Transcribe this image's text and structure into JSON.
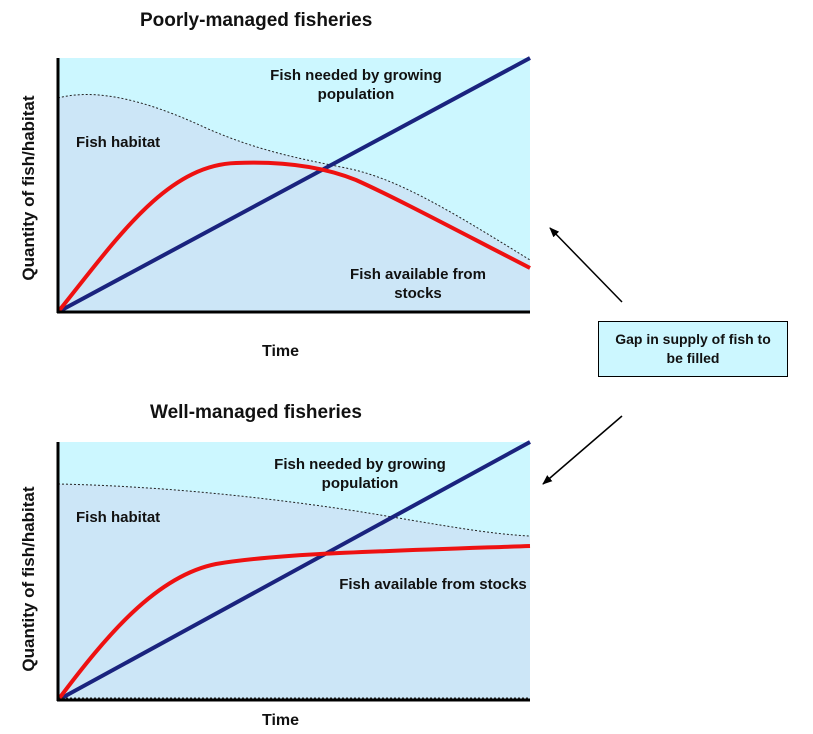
{
  "panels": [
    {
      "title": "Poorly-managed fisheries",
      "ylabel": "Quantity of fish/habitat",
      "xlabel": "Time",
      "label_demand": "Fish needed by growing population",
      "label_habitat": "Fish habitat",
      "label_stocks": "Fish available from stocks"
    },
    {
      "title": "Well-managed fisheries",
      "ylabel": "Quantity of fish/habitat",
      "xlabel": "Time",
      "label_demand": "Fish needed by growing population",
      "label_habitat": "Fish habitat",
      "label_stocks": "Fish available from stocks"
    }
  ],
  "gap_box": "Gap in supply of fish to be filled",
  "colors": {
    "sky": "#ccf7ff",
    "habitat": "#cce6f7",
    "demand_line": "#1a237e",
    "stocks_line": "#ee1111",
    "axis": "#000000"
  }
}
